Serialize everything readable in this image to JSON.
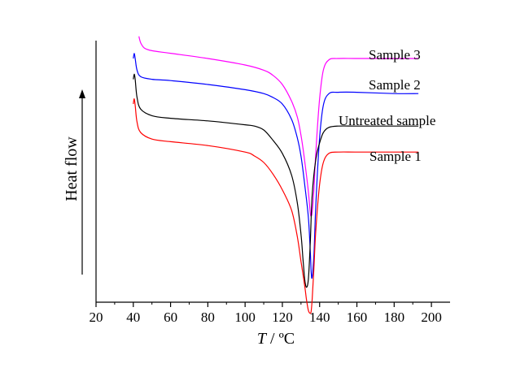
{
  "chart_data": {
    "type": "line",
    "xlabel_var": "T",
    "xlabel_sep": " / ",
    "xlabel_unit": "ºC",
    "ylabel": "Heat flow",
    "xlim": [
      20,
      210
    ],
    "xticks": [
      20,
      40,
      60,
      80,
      100,
      120,
      140,
      160,
      180,
      200
    ],
    "y_arrow": "up",
    "legend": "inline labels at right end of curves",
    "grid": false,
    "series": [
      {
        "name": "Sample 3",
        "color": "#ff00ff",
        "x": [
          43,
          44,
          46,
          50,
          60,
          80,
          100,
          110,
          115,
          120,
          125,
          128,
          130,
          132,
          134,
          135,
          135.5,
          136,
          137,
          138,
          140,
          142,
          145,
          150,
          160,
          180,
          193
        ],
        "y": [
          9.6,
          9.35,
          9.15,
          9.05,
          8.95,
          8.75,
          8.5,
          8.3,
          8.1,
          7.75,
          7.1,
          6.5,
          5.8,
          4.8,
          3.6,
          2.8,
          2.7,
          2.85,
          3.8,
          5.2,
          7.2,
          8.3,
          8.7,
          8.75,
          8.75,
          8.75,
          8.75
        ]
      },
      {
        "name": "Sample 2",
        "color": "#0000ff",
        "x": [
          40,
          40.5,
          41,
          42,
          44,
          50,
          60,
          80,
          100,
          110,
          115,
          120,
          125,
          128,
          130,
          132,
          134,
          135,
          135.5,
          136,
          137,
          138,
          140,
          142,
          145,
          150,
          160,
          180,
          193
        ],
        "y": [
          8.75,
          8.95,
          8.75,
          8.3,
          8.05,
          7.95,
          7.9,
          7.75,
          7.55,
          7.4,
          7.25,
          7.0,
          6.4,
          5.7,
          5.0,
          3.9,
          2.6,
          1.3,
          0.5,
          0.35,
          1.3,
          3.2,
          5.7,
          6.95,
          7.4,
          7.45,
          7.45,
          7.4,
          7.4
        ]
      },
      {
        "name": "Untreated sample",
        "color": "#000000",
        "x": [
          40,
          40.5,
          41,
          42,
          44,
          50,
          60,
          80,
          100,
          105,
          110,
          115,
          120,
          125,
          128,
          130,
          131,
          132,
          133,
          134,
          135,
          136,
          138,
          140,
          142,
          145,
          150,
          160,
          180,
          193
        ],
        "y": [
          7.95,
          8.15,
          7.95,
          7.25,
          6.8,
          6.55,
          6.45,
          6.35,
          6.2,
          6.15,
          6.0,
          5.6,
          5.1,
          4.25,
          3.2,
          2.0,
          1.1,
          0.25,
          -0.05,
          0.3,
          1.7,
          3.5,
          4.9,
          5.5,
          5.9,
          6.1,
          6.15,
          6.15,
          6.15,
          6.15
        ]
      },
      {
        "name": "Sample 1",
        "color": "#ff0000",
        "x": [
          40,
          40.5,
          41,
          42,
          44,
          50,
          60,
          80,
          100,
          105,
          110,
          115,
          120,
          125,
          128,
          130,
          132,
          133,
          134,
          135,
          135.5,
          136,
          137,
          138,
          140,
          142,
          145,
          150,
          160,
          180,
          193
        ],
        "y": [
          7.0,
          7.2,
          6.95,
          6.3,
          5.9,
          5.65,
          5.55,
          5.4,
          5.15,
          5.0,
          4.75,
          4.3,
          3.7,
          2.9,
          1.9,
          0.95,
          0.0,
          -0.55,
          -0.95,
          -1.05,
          -0.95,
          -0.5,
          0.8,
          2.2,
          3.9,
          4.75,
          5.1,
          5.15,
          5.15,
          5.15,
          5.15
        ]
      }
    ]
  }
}
